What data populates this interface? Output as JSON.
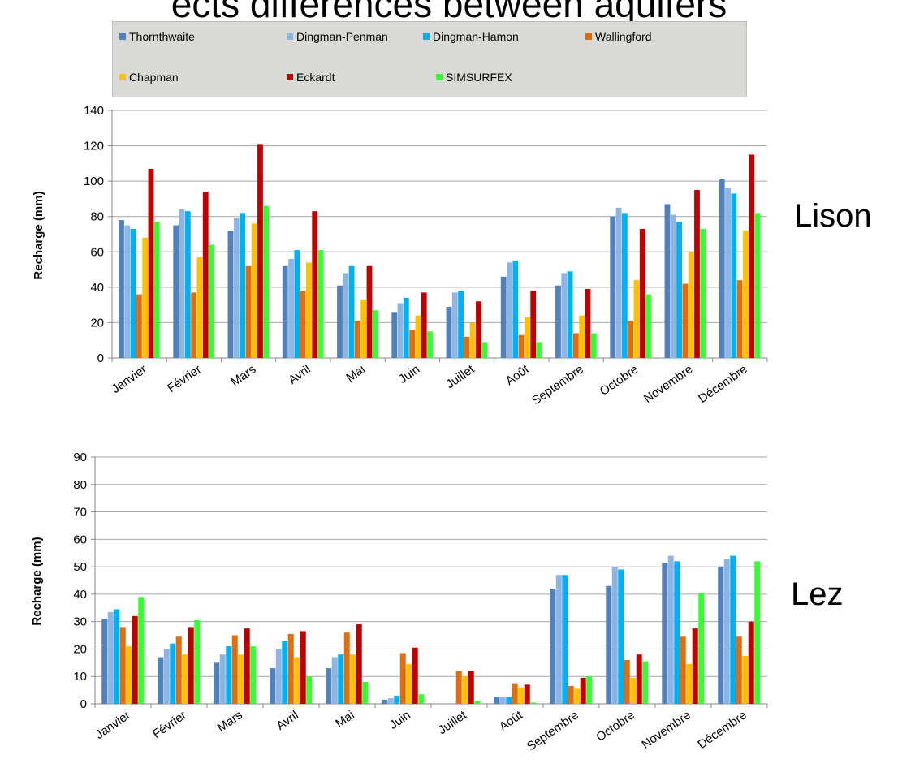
{
  "title": "ects differences between aquifers",
  "colors": [
    "#4f81bd",
    "#8db4e3",
    "#00b0f0",
    "#e46c0a",
    "#ffc000",
    "#c00000",
    "#33ff33"
  ],
  "chart_data": [
    {
      "type": "bar",
      "label": "Lison",
      "ylabel": "Recharge (mm)",
      "ylim": [
        0,
        140
      ],
      "yticks": [
        0,
        20,
        40,
        60,
        80,
        100,
        120,
        140
      ],
      "categories": [
        "Janvier",
        "Février",
        "Mars",
        "Avril",
        "Mai",
        "Juin",
        "Juillet",
        "Août",
        "Septembre",
        "Octobre",
        "Novembre",
        "Décembre"
      ],
      "legend": "top",
      "grid": true,
      "series": [
        {
          "name": "Thornthwaite",
          "values": [
            78,
            75,
            72,
            52,
            41,
            26,
            29,
            46,
            41,
            80,
            87,
            101
          ]
        },
        {
          "name": "Dingman-Penman",
          "values": [
            75,
            84,
            79,
            56,
            48,
            31,
            37,
            54,
            48,
            85,
            81,
            96
          ]
        },
        {
          "name": "Dingman-Hamon",
          "values": [
            73,
            83,
            82,
            61,
            52,
            34,
            38,
            55,
            49,
            82,
            77,
            93
          ]
        },
        {
          "name": "Wallingford",
          "values": [
            36,
            37,
            52,
            38,
            21,
            16,
            12,
            13,
            14,
            21,
            42,
            44
          ]
        },
        {
          "name": "Chapman",
          "values": [
            68,
            57,
            76,
            54,
            33,
            24,
            20,
            23,
            24,
            44,
            60,
            72
          ]
        },
        {
          "name": "Eckardt",
          "values": [
            107,
            94,
            121,
            83,
            52,
            37,
            32,
            38,
            39,
            73,
            95,
            115
          ]
        },
        {
          "name": "SIMSURFEX",
          "values": [
            77,
            64,
            86,
            61,
            27,
            15,
            9,
            9,
            14,
            36,
            73,
            82
          ]
        }
      ]
    },
    {
      "type": "bar",
      "label": "Lez",
      "ylabel": "Recharge (mm)",
      "ylim": [
        0,
        90
      ],
      "yticks": [
        0,
        10,
        20,
        30,
        40,
        50,
        60,
        70,
        80,
        90
      ],
      "categories": [
        "Janvier",
        "Février",
        "Mars",
        "Avril",
        "Mai",
        "Juin",
        "Juillet",
        "Août",
        "Septembre",
        "Octobre",
        "Novembre",
        "Décembre"
      ],
      "grid": true,
      "series": [
        {
          "name": "Thornthwaite",
          "values": [
            31,
            17,
            15,
            13,
            13,
            1.5,
            0,
            2.5,
            42,
            43,
            51.5,
            50
          ]
        },
        {
          "name": "Dingman-Penman",
          "values": [
            33.5,
            20,
            18,
            20,
            17,
            2,
            0,
            2.5,
            47,
            50,
            54,
            53
          ]
        },
        {
          "name": "Dingman-Hamon",
          "values": [
            34.5,
            22,
            21,
            23,
            18,
            3,
            0,
            2.5,
            47,
            49,
            52,
            54
          ]
        },
        {
          "name": "Wallingford",
          "values": [
            28,
            24.5,
            25,
            25.5,
            26,
            18.5,
            12,
            7.5,
            6.5,
            16,
            24.5,
            24.5
          ]
        },
        {
          "name": "Chapman",
          "values": [
            21,
            18,
            18,
            17,
            18,
            14.5,
            10,
            6,
            5.5,
            9.5,
            14.5,
            17.5
          ]
        },
        {
          "name": "Eckardt",
          "values": [
            32,
            28,
            27.5,
            26.5,
            29,
            20.5,
            12,
            7,
            9.5,
            18,
            27.5,
            30
          ]
        },
        {
          "name": "SIMSURFEX",
          "values": [
            39,
            30.5,
            21,
            10,
            8,
            3.5,
            1,
            0.5,
            10,
            15.5,
            40.5,
            52
          ]
        }
      ]
    }
  ]
}
